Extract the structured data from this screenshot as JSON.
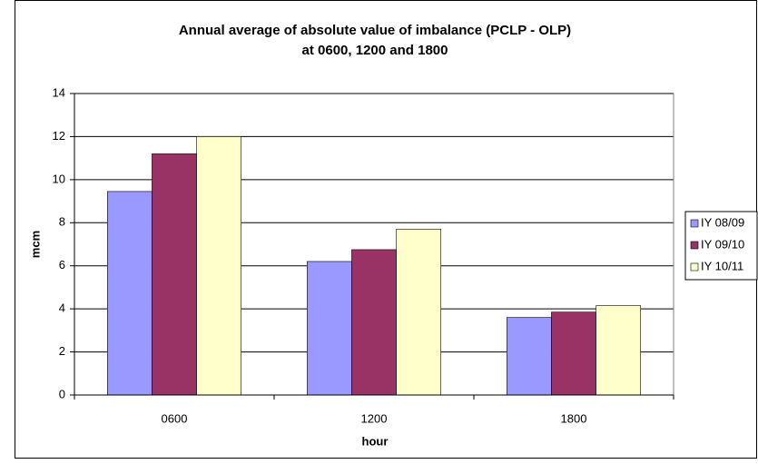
{
  "chart_data": {
    "type": "bar",
    "title": [
      "Annual average of absolute value of imbalance (PCLP - OLP)",
      "at 0600, 1200 and 1800"
    ],
    "x_label": "hour",
    "y_label": "mcm",
    "categories": [
      "0600",
      "1200",
      "1800"
    ],
    "series": [
      {
        "name": "IY 08/09",
        "color": "#9999ff",
        "values": [
          9.45,
          6.2,
          3.6
        ]
      },
      {
        "name": "IY 09/10",
        "color": "#993366",
        "values": [
          11.2,
          6.75,
          3.85
        ]
      },
      {
        "name": "IY 10/11",
        "color": "#ffffcc",
        "values": [
          12.0,
          7.7,
          4.15
        ]
      }
    ],
    "ylim": [
      0,
      14
    ],
    "yticks": [
      0,
      2,
      4,
      6,
      8,
      10,
      12,
      14
    ],
    "grid": true,
    "legend": "right"
  }
}
